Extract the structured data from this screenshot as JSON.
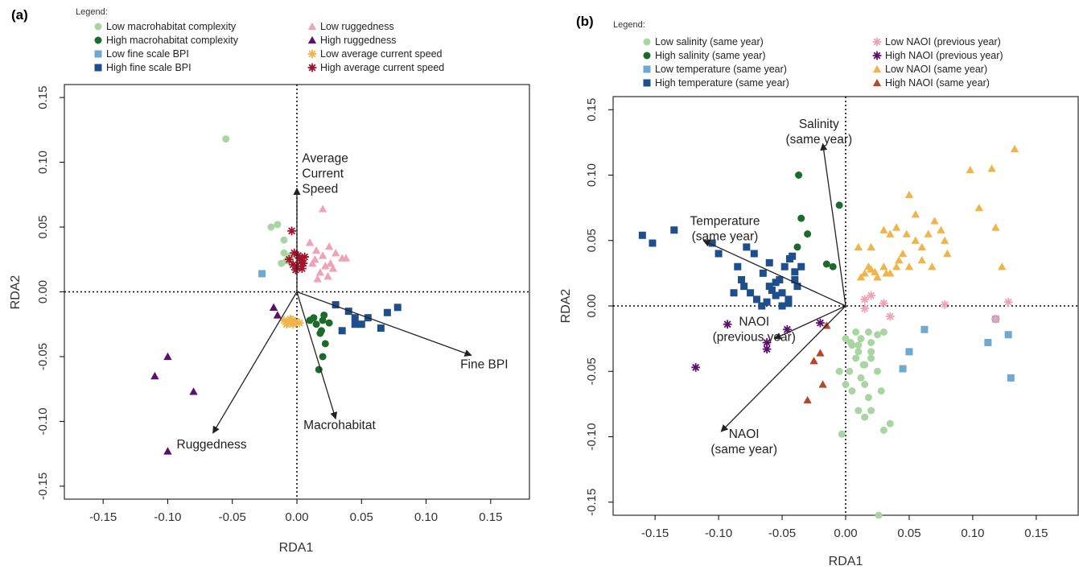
{
  "chart_data": [
    {
      "type": "scatter",
      "panel_label": "(a)",
      "legend_title": "Legend:",
      "xlabel": "RDA1",
      "ylabel": "RDA2",
      "xlim": [
        -0.18,
        0.18
      ],
      "ylim": [
        -0.16,
        0.16
      ],
      "xticks": [
        -0.15,
        -0.1,
        -0.05,
        0.0,
        0.05,
        0.1,
        0.15
      ],
      "xtick_labels": [
        "-0.15",
        "-0.10",
        "-0.05",
        "0.00",
        "0.05",
        "0.10",
        "0.15"
      ],
      "yticks": [
        -0.15,
        -0.1,
        -0.05,
        0.0,
        0.05,
        0.1,
        0.15
      ],
      "ytick_labels": [
        "-0.15",
        "-0.10",
        "-0.05",
        "0.00",
        "0.05",
        "0.10",
        "0.15"
      ],
      "grid": false,
      "reference_lines": "dotted lines at x = 0 and y = 0",
      "series": [
        {
          "name": "Low macrohabitat complexity",
          "marker": "circle",
          "color": "#a8d5a2",
          "x": [
            -0.055,
            -0.02,
            -0.015,
            -0.01,
            -0.012,
            -0.008,
            -0.01,
            -0.005
          ],
          "y": [
            0.118,
            0.05,
            0.052,
            0.04,
            0.022,
            0.024,
            0.03,
            0.028
          ]
        },
        {
          "name": "High macrohabitat complexity",
          "marker": "circle",
          "color": "#1b6b2a",
          "x": [
            0.01,
            0.015,
            0.02,
            0.018,
            0.022,
            0.02,
            0.017,
            0.019,
            0.025,
            0.013,
            0.021
          ],
          "y": [
            -0.022,
            -0.025,
            -0.022,
            -0.032,
            -0.04,
            -0.05,
            -0.06,
            -0.03,
            -0.024,
            -0.02,
            -0.018
          ]
        },
        {
          "name": "Low fine scale BPI",
          "marker": "square",
          "color": "#6fa8d0",
          "x": [
            -0.027
          ],
          "y": [
            0.014
          ]
        },
        {
          "name": "High fine scale BPI",
          "marker": "square",
          "color": "#1f4e8c",
          "x": [
            0.03,
            0.04,
            0.045,
            0.055,
            0.065,
            0.07,
            0.078,
            0.035,
            0.05,
            0.045
          ],
          "y": [
            -0.01,
            -0.015,
            -0.02,
            -0.02,
            -0.028,
            -0.016,
            -0.012,
            -0.03,
            -0.025,
            -0.025
          ]
        },
        {
          "name": "Low ruggedness",
          "marker": "triangle",
          "color": "#f0a3b6",
          "x": [
            0.01,
            0.015,
            0.02,
            0.025,
            0.03,
            0.035,
            0.022,
            0.012,
            0.028,
            0.018,
            0.024,
            0.016,
            0.014,
            0.038,
            0.026,
            0.02
          ],
          "y": [
            0.038,
            0.032,
            0.028,
            0.035,
            0.03,
            0.026,
            0.02,
            0.022,
            0.018,
            0.015,
            0.012,
            0.01,
            0.025,
            0.026,
            0.022,
            0.064
          ]
        },
        {
          "name": "High ruggedness",
          "marker": "triangle",
          "color": "#5c0f6e",
          "x": [
            -0.018,
            -0.015,
            -0.1,
            -0.11,
            -0.08,
            -0.1
          ],
          "y": [
            -0.012,
            -0.018,
            -0.05,
            -0.065,
            -0.077,
            -0.123
          ]
        },
        {
          "name": "Low average current speed",
          "marker": "asterisk",
          "color": "#f0b44a",
          "x": [
            -0.01,
            -0.007,
            -0.004,
            -0.001,
            0.002,
            -0.005,
            -0.008,
            -0.003
          ],
          "y": [
            -0.022,
            -0.024,
            -0.022,
            -0.023,
            -0.024,
            -0.021,
            -0.025,
            -0.025
          ]
        },
        {
          "name": "High average current speed",
          "marker": "asterisk",
          "color": "#a3122b",
          "x": [
            -0.004,
            -0.002,
            0.001,
            0.003,
            0.005,
            -0.006,
            0.0,
            0.004,
            -0.003,
            0.002,
            -0.001,
            0.006
          ],
          "y": [
            0.047,
            0.03,
            0.028,
            0.024,
            0.022,
            0.025,
            0.02,
            0.018,
            0.021,
            0.026,
            0.017,
            0.027
          ]
        }
      ],
      "arrows": [
        {
          "label": "Average\nCurrent\nSpeed",
          "x": 0.0,
          "y": 0.08,
          "label_x": 0.004,
          "label_y": 0.1,
          "anchor": "start"
        },
        {
          "label": "Fine BPI",
          "x": 0.135,
          "y": -0.049,
          "label_x": 0.145,
          "label_y": -0.059,
          "anchor": "middle"
        },
        {
          "label": "Ruggedness",
          "x": -0.065,
          "y": -0.109,
          "label_x": -0.066,
          "label_y": -0.121,
          "anchor": "middle"
        },
        {
          "label": "Macrohabitat",
          "x": 0.03,
          "y": -0.098,
          "label_x": 0.033,
          "label_y": -0.106,
          "anchor": "middle"
        }
      ]
    },
    {
      "type": "scatter",
      "panel_label": "(b)",
      "legend_title": "Legend:",
      "xlabel": "RDA1",
      "ylabel": "RDA2",
      "xlim": [
        -0.183,
        0.183
      ],
      "ylim": [
        -0.16,
        0.16
      ],
      "xticks": [
        -0.15,
        -0.1,
        -0.05,
        0.0,
        0.05,
        0.1,
        0.15
      ],
      "xtick_labels": [
        "-0.15",
        "-0.10",
        "-0.05",
        "0.00",
        "0.05",
        "0.10",
        "0.15"
      ],
      "yticks": [
        -0.15,
        -0.1,
        -0.05,
        0.0,
        0.05,
        0.1,
        0.15
      ],
      "ytick_labels": [
        "-0.15",
        "-0.10",
        "-0.05",
        "0.00",
        "0.05",
        "0.10",
        "0.15"
      ],
      "grid": false,
      "reference_lines": "dotted lines at x = 0 and y = 0",
      "series": [
        {
          "name": "Low salinity (same year)",
          "marker": "circle",
          "color": "#a8d5a2",
          "x": [
            0.0,
            0.005,
            0.01,
            0.008,
            0.003,
            0.012,
            0.015,
            -0.005,
            0.018,
            0.02,
            0.01,
            0.005,
            0.015,
            0.02,
            0.025,
            0.03,
            0.028,
            0.035,
            0.03,
            0.015,
            0.01,
            0.02,
            0.025,
            0.018,
            -0.003,
            0.0,
            0.008,
            0.012,
            0.026,
            0.02,
            0.014,
            0.004
          ],
          "y": [
            -0.025,
            -0.03,
            -0.035,
            -0.04,
            -0.05,
            -0.055,
            -0.06,
            -0.05,
            -0.07,
            -0.08,
            -0.08,
            -0.065,
            -0.045,
            -0.04,
            -0.05,
            -0.02,
            -0.065,
            -0.09,
            -0.095,
            -0.085,
            -0.03,
            -0.028,
            -0.022,
            -0.02,
            -0.098,
            -0.06,
            -0.02,
            -0.025,
            -0.16,
            -0.035,
            -0.045,
            -0.028
          ]
        },
        {
          "name": "High salinity (same year)",
          "marker": "circle",
          "color": "#1b6b2a",
          "x": [
            -0.037,
            -0.035,
            -0.03,
            -0.038,
            -0.015,
            -0.01,
            -0.005
          ],
          "y": [
            0.1,
            0.067,
            0.055,
            0.045,
            0.032,
            0.03,
            0.077
          ]
        },
        {
          "name": "Low temperature (same year)",
          "marker": "square",
          "color": "#6fa8d0",
          "x": [
            0.05,
            0.045,
            0.062,
            0.112,
            0.118,
            0.13,
            0.128
          ],
          "y": [
            -0.035,
            -0.048,
            -0.018,
            -0.028,
            -0.01,
            -0.055,
            -0.022
          ]
        },
        {
          "name": "High temperature (same year)",
          "marker": "square",
          "color": "#1f4e8c",
          "x": [
            -0.16,
            -0.152,
            -0.135,
            -0.105,
            -0.1,
            -0.085,
            -0.08,
            -0.075,
            -0.07,
            -0.065,
            -0.06,
            -0.055,
            -0.05,
            -0.045,
            -0.04,
            -0.035,
            -0.042,
            -0.048,
            -0.052,
            -0.058,
            -0.062,
            -0.066,
            -0.072,
            -0.078,
            -0.082,
            -0.088,
            -0.045,
            -0.04,
            -0.038,
            -0.05,
            -0.055,
            -0.06,
            -0.044
          ],
          "y": [
            0.054,
            0.048,
            0.058,
            0.048,
            0.04,
            0.03,
            0.015,
            0.01,
            0.005,
            0.025,
            0.033,
            0.018,
            0.01,
            0.005,
            0.02,
            0.03,
            0.038,
            0.03,
            0.02,
            0.012,
            0.003,
            0.0,
            0.04,
            0.045,
            0.02,
            0.01,
            0.002,
            0.026,
            0.015,
            0.0,
            0.008,
            0.015,
            0.036
          ]
        },
        {
          "name": "Low NAOI (previous year)",
          "marker": "asterisk",
          "color": "#f0a3b6",
          "x": [
            0.015,
            0.02,
            0.03,
            0.035,
            0.078,
            0.128,
            0.118,
            0.015
          ],
          "y": [
            0.005,
            0.008,
            0.002,
            -0.008,
            0.001,
            0.003,
            -0.01,
            -0.002
          ]
        },
        {
          "name": "High NAOI (previous year)",
          "marker": "asterisk",
          "color": "#5c0f6e",
          "x": [
            -0.118,
            -0.093,
            -0.062,
            -0.046,
            -0.02,
            -0.062
          ],
          "y": [
            -0.047,
            -0.014,
            -0.033,
            -0.018,
            -0.013,
            -0.028
          ]
        },
        {
          "name": "Low NAOI (same year)",
          "marker": "triangle",
          "color": "#f0b44a",
          "x": [
            0.01,
            0.015,
            0.02,
            0.025,
            0.03,
            0.035,
            0.04,
            0.045,
            0.05,
            0.055,
            0.06,
            0.065,
            0.07,
            0.075,
            0.078,
            0.08,
            0.068,
            0.06,
            0.05,
            0.042,
            0.035,
            0.025,
            0.018,
            0.012,
            0.03,
            0.04,
            0.02,
            0.055,
            0.048,
            0.098,
            0.115,
            0.133,
            0.105,
            0.118,
            0.123,
            0.032,
            0.023
          ],
          "y": [
            0.045,
            0.025,
            0.028,
            0.022,
            0.03,
            0.055,
            0.06,
            0.04,
            0.085,
            0.05,
            0.045,
            0.055,
            0.065,
            0.058,
            0.05,
            0.04,
            0.03,
            0.035,
            0.03,
            0.035,
            0.025,
            0.022,
            0.03,
            0.022,
            0.058,
            0.03,
            0.045,
            0.07,
            0.055,
            0.104,
            0.105,
            0.12,
            0.075,
            0.06,
            0.03,
            0.025,
            0.026
          ]
        },
        {
          "name": "High NAOI (same year)",
          "marker": "triangle",
          "color": "#b5482a",
          "x": [
            -0.02,
            -0.015,
            -0.03,
            -0.018,
            -0.025
          ],
          "y": [
            -0.036,
            -0.015,
            -0.072,
            -0.06,
            -0.042
          ]
        }
      ],
      "arrows": [
        {
          "label": "Salinity\n(same year)",
          "x": -0.018,
          "y": 0.124,
          "label_x": -0.021,
          "label_y": 0.136,
          "anchor": "middle"
        },
        {
          "label": "Temperature\n(same year)",
          "x": -0.112,
          "y": 0.05,
          "label_x": -0.095,
          "label_y": 0.062,
          "anchor": "middle"
        },
        {
          "label": "NAOI\n(previous year)",
          "x": -0.056,
          "y": -0.025,
          "label_x": -0.072,
          "label_y": -0.015,
          "anchor": "middle"
        },
        {
          "label": "NAOI\n(same year)",
          "x": -0.098,
          "y": -0.096,
          "label_x": -0.08,
          "label_y": -0.101,
          "anchor": "middle"
        }
      ]
    }
  ]
}
